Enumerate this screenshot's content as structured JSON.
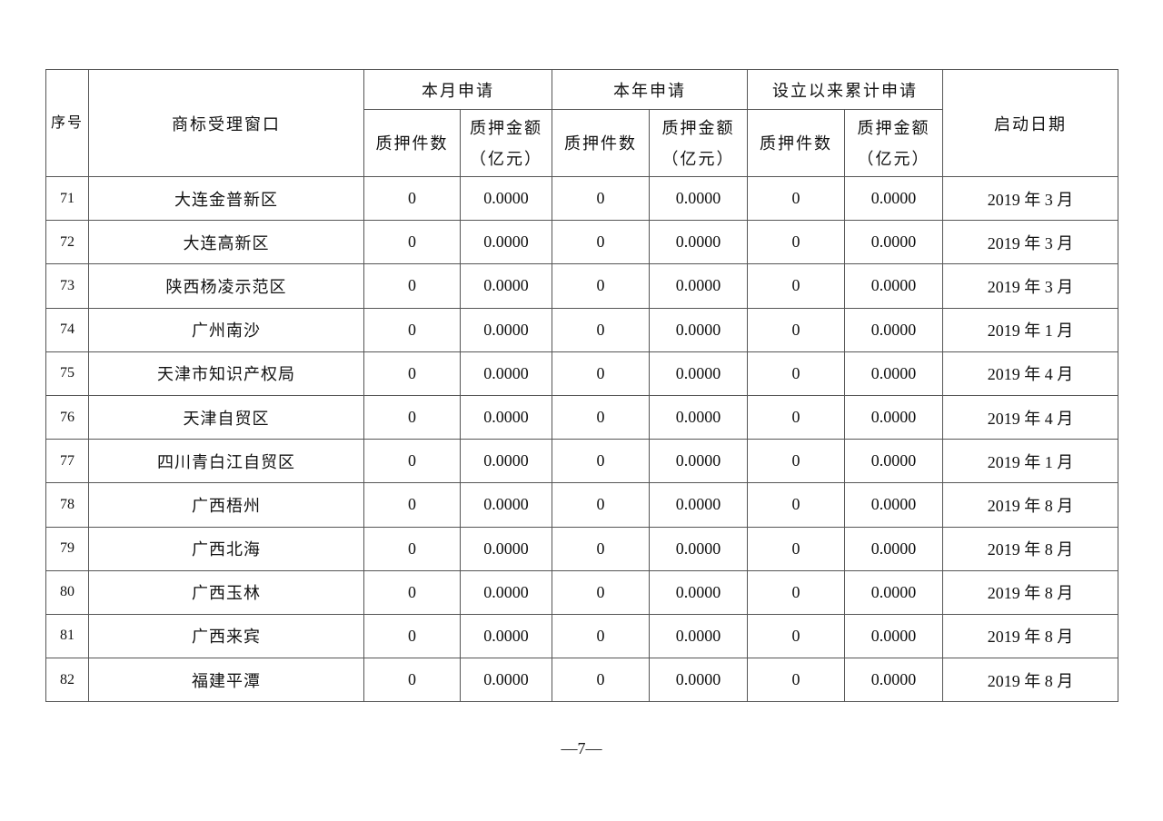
{
  "header": {
    "index": "序号",
    "window": "商标受理窗口",
    "groups": [
      "本月申请",
      "本年申请",
      "设立以来累计申请"
    ],
    "count": "质押件数",
    "amount_line1": "质押金额",
    "amount_line2": "（亿元）",
    "start_date": "启动日期"
  },
  "rows": [
    {
      "no": "71",
      "name": "大连金普新区",
      "m_count": "0",
      "m_amount": "0.0000",
      "y_count": "0",
      "y_amount": "0.0000",
      "t_count": "0",
      "t_amount": "0.0000",
      "date": "2019 年 3 月"
    },
    {
      "no": "72",
      "name": "大连高新区",
      "m_count": "0",
      "m_amount": "0.0000",
      "y_count": "0",
      "y_amount": "0.0000",
      "t_count": "0",
      "t_amount": "0.0000",
      "date": "2019 年 3 月"
    },
    {
      "no": "73",
      "name": "陕西杨凌示范区",
      "m_count": "0",
      "m_amount": "0.0000",
      "y_count": "0",
      "y_amount": "0.0000",
      "t_count": "0",
      "t_amount": "0.0000",
      "date": "2019 年 3 月"
    },
    {
      "no": "74",
      "name": "广州南沙",
      "m_count": "0",
      "m_amount": "0.0000",
      "y_count": "0",
      "y_amount": "0.0000",
      "t_count": "0",
      "t_amount": "0.0000",
      "date": "2019 年 1 月"
    },
    {
      "no": "75",
      "name": "天津市知识产权局",
      "m_count": "0",
      "m_amount": "0.0000",
      "y_count": "0",
      "y_amount": "0.0000",
      "t_count": "0",
      "t_amount": "0.0000",
      "date": "2019 年 4 月"
    },
    {
      "no": "76",
      "name": "天津自贸区",
      "m_count": "0",
      "m_amount": "0.0000",
      "y_count": "0",
      "y_amount": "0.0000",
      "t_count": "0",
      "t_amount": "0.0000",
      "date": "2019 年 4 月"
    },
    {
      "no": "77",
      "name": "四川青白江自贸区",
      "m_count": "0",
      "m_amount": "0.0000",
      "y_count": "0",
      "y_amount": "0.0000",
      "t_count": "0",
      "t_amount": "0.0000",
      "date": "2019 年 1 月"
    },
    {
      "no": "78",
      "name": "广西梧州",
      "m_count": "0",
      "m_amount": "0.0000",
      "y_count": "0",
      "y_amount": "0.0000",
      "t_count": "0",
      "t_amount": "0.0000",
      "date": "2019 年 8 月"
    },
    {
      "no": "79",
      "name": "广西北海",
      "m_count": "0",
      "m_amount": "0.0000",
      "y_count": "0",
      "y_amount": "0.0000",
      "t_count": "0",
      "t_amount": "0.0000",
      "date": "2019 年 8 月"
    },
    {
      "no": "80",
      "name": "广西玉林",
      "m_count": "0",
      "m_amount": "0.0000",
      "y_count": "0",
      "y_amount": "0.0000",
      "t_count": "0",
      "t_amount": "0.0000",
      "date": "2019 年 8 月"
    },
    {
      "no": "81",
      "name": "广西来宾",
      "m_count": "0",
      "m_amount": "0.0000",
      "y_count": "0",
      "y_amount": "0.0000",
      "t_count": "0",
      "t_amount": "0.0000",
      "date": "2019 年 8 月"
    },
    {
      "no": "82",
      "name": "福建平潭",
      "m_count": "0",
      "m_amount": "0.0000",
      "y_count": "0",
      "y_amount": "0.0000",
      "t_count": "0",
      "t_amount": "0.0000",
      "date": "2019 年 8 月"
    }
  ],
  "page_number": "—7—"
}
